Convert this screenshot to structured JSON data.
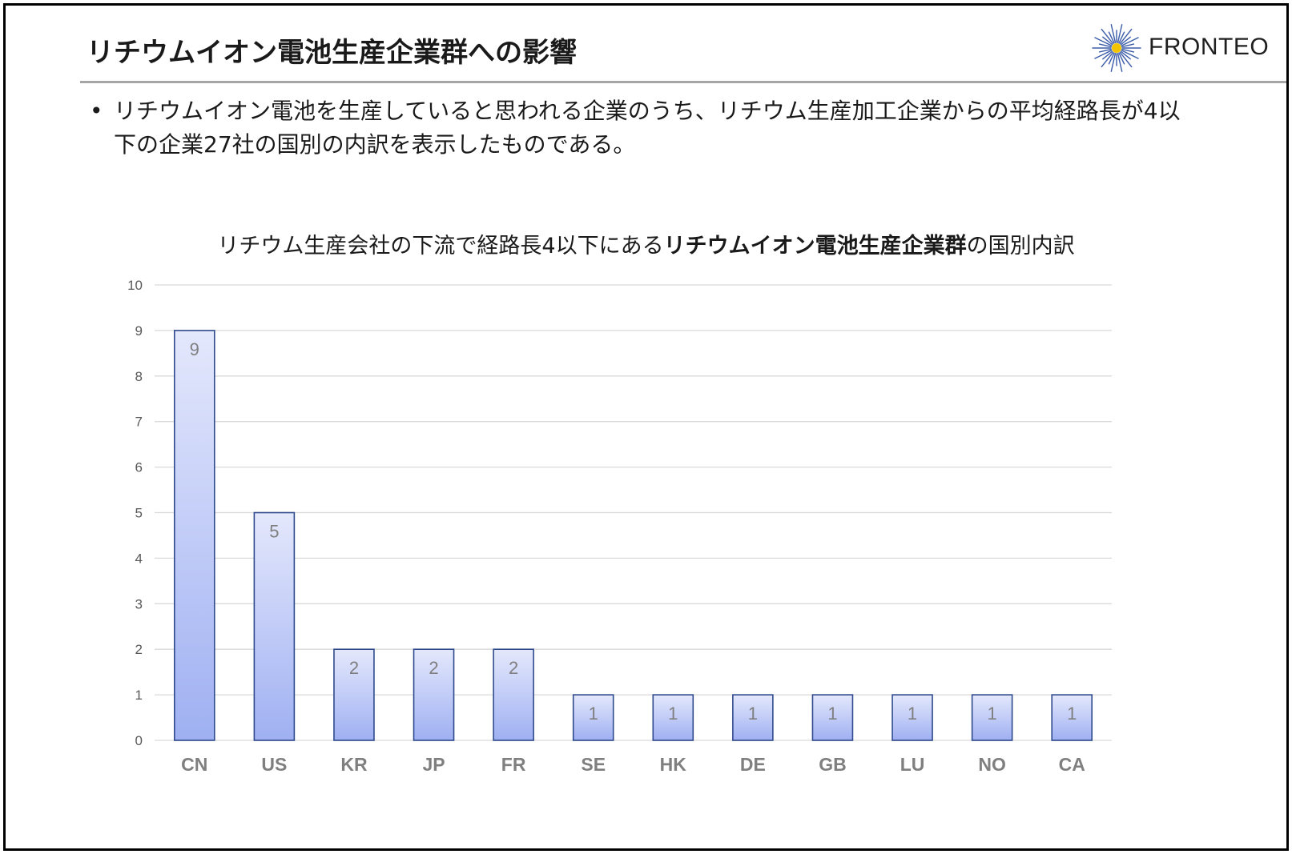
{
  "slide": {
    "title": "リチウムイオン電池生産企業群への影響",
    "logo_text": "FRONTEO",
    "bullet": {
      "marker": "•",
      "line1": "リチウムイオン電池を生産していると思われる企業のうち、リチウム生産加工企業からの平均経路長が4以",
      "line2": "下の企業27社の国別の内訳を表示したものである。"
    }
  },
  "colors": {
    "bar_top": "#e4e8fc",
    "bar_bottom": "#9fb0f2",
    "bar_stroke": "#2f4a8c",
    "grid": "#d9d9d9",
    "logo_ray": "#3a5ba8",
    "logo_center": "#f2c300"
  },
  "chart_data": {
    "type": "bar",
    "title_regular": "リチウム生産会社の下流で経路長4以下にある",
    "title_bold": "リチウムイオン電池生産企業群",
    "title_tail": "の国別内訳",
    "categories": [
      "CN",
      "US",
      "KR",
      "JP",
      "FR",
      "SE",
      "HK",
      "DE",
      "GB",
      "LU",
      "NO",
      "CA"
    ],
    "values": [
      9,
      5,
      2,
      2,
      2,
      1,
      1,
      1,
      1,
      1,
      1,
      1
    ],
    "ylim": [
      0,
      10
    ],
    "yticks": [
      0,
      1,
      2,
      3,
      4,
      5,
      6,
      7,
      8,
      9,
      10
    ],
    "grid": true,
    "data_labels": true
  }
}
